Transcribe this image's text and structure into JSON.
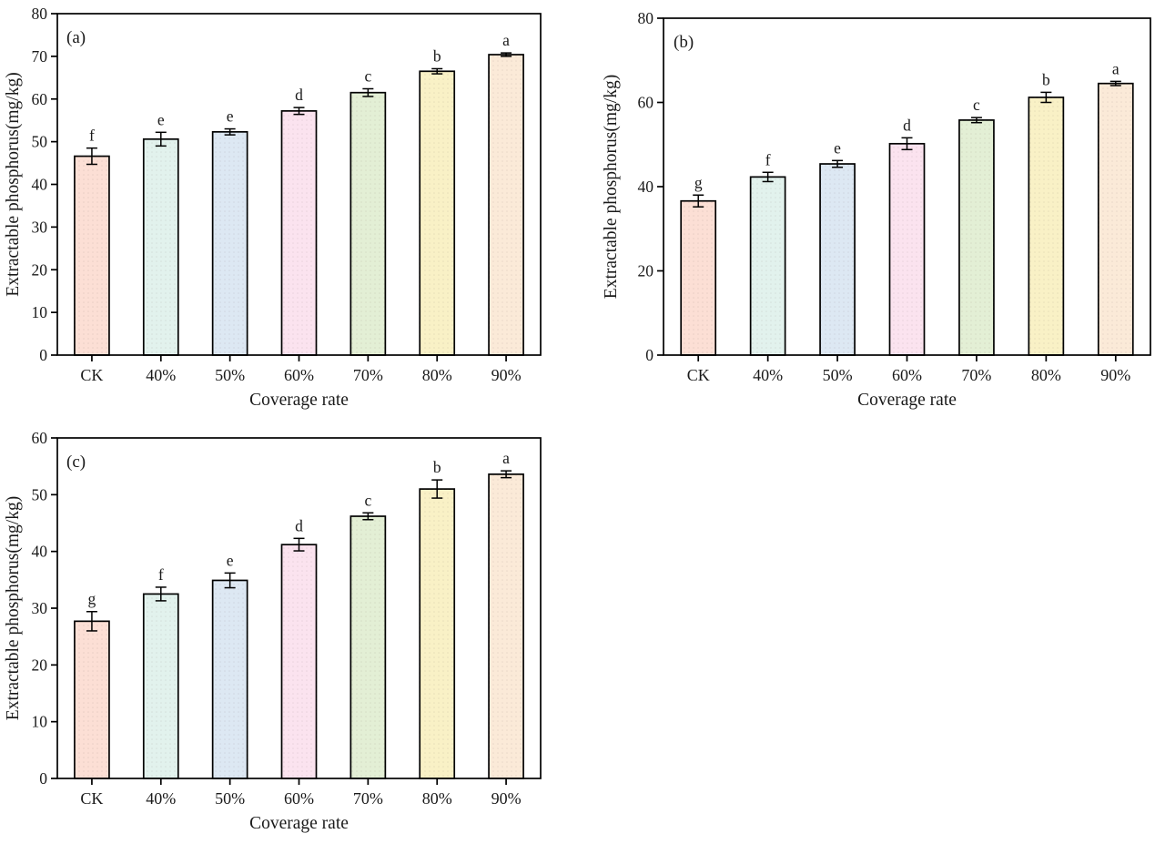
{
  "figure": {
    "background": "#ffffff",
    "text_color": "#1a1a1a",
    "axis_color": "#000000",
    "bar_border_color": "#000000",
    "bar_fill_colors": [
      "#FCDFD5",
      "#E2F2ED",
      "#DDE8F3",
      "#FBE3EF",
      "#E3EFD5",
      "#F9F1C6",
      "#FBEAD8"
    ]
  },
  "chart_data": [
    {
      "id": "a",
      "type": "bar",
      "panel_label": "(a)",
      "xlabel": "Coverage rate",
      "ylabel": "Extractable phosphorus(mg/kg)",
      "categories": [
        "CK",
        "40%",
        "50%",
        "60%",
        "70%",
        "80%",
        "90%"
      ],
      "values": [
        46.6,
        50.6,
        52.3,
        57.2,
        61.5,
        66.5,
        70.4
      ],
      "errors": [
        1.9,
        1.6,
        0.7,
        0.8,
        0.9,
        0.6,
        0.4
      ],
      "sig_letters": [
        "f",
        "e",
        "e",
        "d",
        "c",
        "b",
        "a"
      ],
      "ylim": [
        0,
        80
      ],
      "ytick_step": 10,
      "ytick_labels": [
        "0",
        "10",
        "20",
        "30",
        "40",
        "50",
        "60",
        "70",
        "80"
      ],
      "grid": false,
      "legend": null
    },
    {
      "id": "b",
      "type": "bar",
      "panel_label": "(b)",
      "xlabel": "Coverage rate",
      "ylabel": "Extractable phosphorus(mg/kg)",
      "categories": [
        "CK",
        "40%",
        "50%",
        "60%",
        "70%",
        "80%",
        "90%"
      ],
      "values": [
        36.6,
        42.3,
        45.4,
        50.2,
        55.8,
        61.2,
        64.5
      ],
      "errors": [
        1.4,
        1.1,
        0.8,
        1.4,
        0.6,
        1.2,
        0.5
      ],
      "sig_letters": [
        "g",
        "f",
        "e",
        "d",
        "c",
        "b",
        "a"
      ],
      "ylim": [
        0,
        80
      ],
      "ytick_step": 20,
      "ytick_labels": [
        "0",
        "20",
        "40",
        "60",
        "80"
      ],
      "grid": false,
      "legend": null
    },
    {
      "id": "c",
      "type": "bar",
      "panel_label": "(c)",
      "xlabel": "Coverage rate",
      "ylabel": "Extractable phosphorus(mg/kg)",
      "categories": [
        "CK",
        "40%",
        "50%",
        "60%",
        "70%",
        "80%",
        "90%"
      ],
      "values": [
        27.7,
        32.5,
        34.9,
        41.2,
        46.2,
        51.0,
        53.6
      ],
      "errors": [
        1.7,
        1.2,
        1.3,
        1.1,
        0.6,
        1.6,
        0.6
      ],
      "sig_letters": [
        "g",
        "f",
        "e",
        "d",
        "c",
        "b",
        "a"
      ],
      "ylim": [
        0,
        60
      ],
      "ytick_step": 10,
      "ytick_labels": [
        "0",
        "10",
        "20",
        "30",
        "40",
        "50",
        "60"
      ],
      "grid": false,
      "legend": null
    }
  ]
}
